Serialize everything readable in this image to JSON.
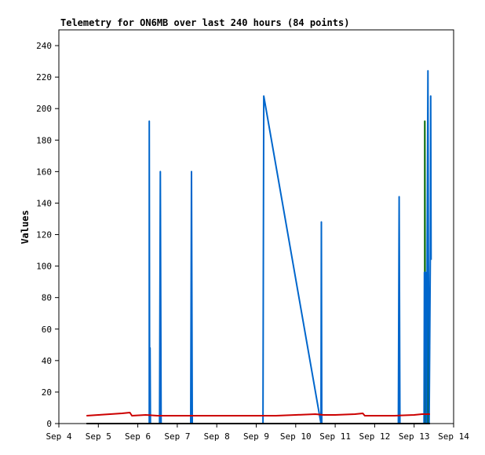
{
  "chart_data": {
    "type": "line",
    "title": "Telemetry for ON6MB over last 240 hours (84 points)",
    "xlabel": "",
    "ylabel": "Values",
    "xlim": [
      4.0,
      14.0
    ],
    "ylim": [
      0,
      250
    ],
    "x_ticks": [
      {
        "value": 4,
        "label": "Sep 4"
      },
      {
        "value": 5,
        "label": "Sep 5"
      },
      {
        "value": 6,
        "label": "Sep 6"
      },
      {
        "value": 7,
        "label": "Sep 7"
      },
      {
        "value": 8,
        "label": "Sep 8"
      },
      {
        "value": 9,
        "label": "Sep 9"
      },
      {
        "value": 10,
        "label": "Sep 10"
      },
      {
        "value": 11,
        "label": "Sep 11"
      },
      {
        "value": 12,
        "label": "Sep 12"
      },
      {
        "value": 13,
        "label": "Sep 13"
      },
      {
        "value": 14,
        "label": "Sep 14"
      }
    ],
    "y_ticks": [
      0,
      20,
      40,
      60,
      80,
      100,
      120,
      140,
      160,
      180,
      200,
      220,
      240
    ],
    "grid": false,
    "series": [
      {
        "color": "#006600",
        "points": [
          [
            13.27,
            0
          ],
          [
            13.27,
            192
          ],
          [
            13.28,
            0
          ],
          [
            13.34,
            0
          ],
          [
            13.34,
            112
          ],
          [
            13.35,
            0
          ]
        ]
      },
      {
        "color": "#0066cc",
        "points": [
          [
            6.29,
            0
          ],
          [
            6.29,
            192
          ],
          [
            6.3,
            0
          ],
          [
            6.31,
            48
          ],
          [
            6.32,
            0
          ],
          [
            6.55,
            0
          ],
          [
            6.56,
            80
          ],
          [
            6.57,
            160
          ],
          [
            6.58,
            80
          ],
          [
            6.59,
            0
          ],
          [
            7.34,
            0
          ],
          [
            7.35,
            80
          ],
          [
            7.36,
            160
          ],
          [
            7.37,
            80
          ],
          [
            7.38,
            0
          ],
          [
            9.17,
            0
          ],
          [
            9.18,
            112
          ],
          [
            9.19,
            208
          ],
          [
            10.64,
            0
          ],
          [
            10.65,
            128
          ],
          [
            10.66,
            0
          ],
          [
            12.6,
            0
          ],
          [
            12.61,
            72
          ],
          [
            12.62,
            144
          ],
          [
            12.63,
            72
          ],
          [
            12.64,
            0
          ],
          [
            13.25,
            0
          ],
          [
            13.26,
            96
          ],
          [
            13.29,
            96
          ],
          [
            13.3,
            0
          ],
          [
            13.32,
            0
          ],
          [
            13.33,
            112
          ],
          [
            13.35,
            224
          ],
          [
            13.36,
            112
          ],
          [
            13.38,
            0
          ],
          [
            13.41,
            104
          ],
          [
            13.42,
            208
          ],
          [
            13.43,
            104
          ]
        ]
      },
      {
        "color": "#cc0000",
        "points": [
          [
            4.7,
            5
          ],
          [
            5.0,
            5.5
          ],
          [
            5.3,
            6
          ],
          [
            5.6,
            6.5
          ],
          [
            5.8,
            7
          ],
          [
            5.85,
            5
          ],
          [
            6.2,
            5.5
          ],
          [
            6.5,
            5
          ],
          [
            7.0,
            5
          ],
          [
            8.0,
            5
          ],
          [
            9.0,
            5
          ],
          [
            9.5,
            5
          ],
          [
            10.0,
            5.5
          ],
          [
            10.5,
            6
          ],
          [
            10.7,
            5.5
          ],
          [
            11.0,
            5.5
          ],
          [
            11.5,
            6
          ],
          [
            11.7,
            6.5
          ],
          [
            11.75,
            5
          ],
          [
            12.0,
            5
          ],
          [
            12.5,
            5
          ],
          [
            13.0,
            5.5
          ],
          [
            13.2,
            6
          ],
          [
            13.4,
            6
          ]
        ]
      },
      {
        "color": "#000000",
        "points": [
          [
            4.7,
            0
          ],
          [
            13.4,
            0
          ]
        ]
      }
    ]
  }
}
